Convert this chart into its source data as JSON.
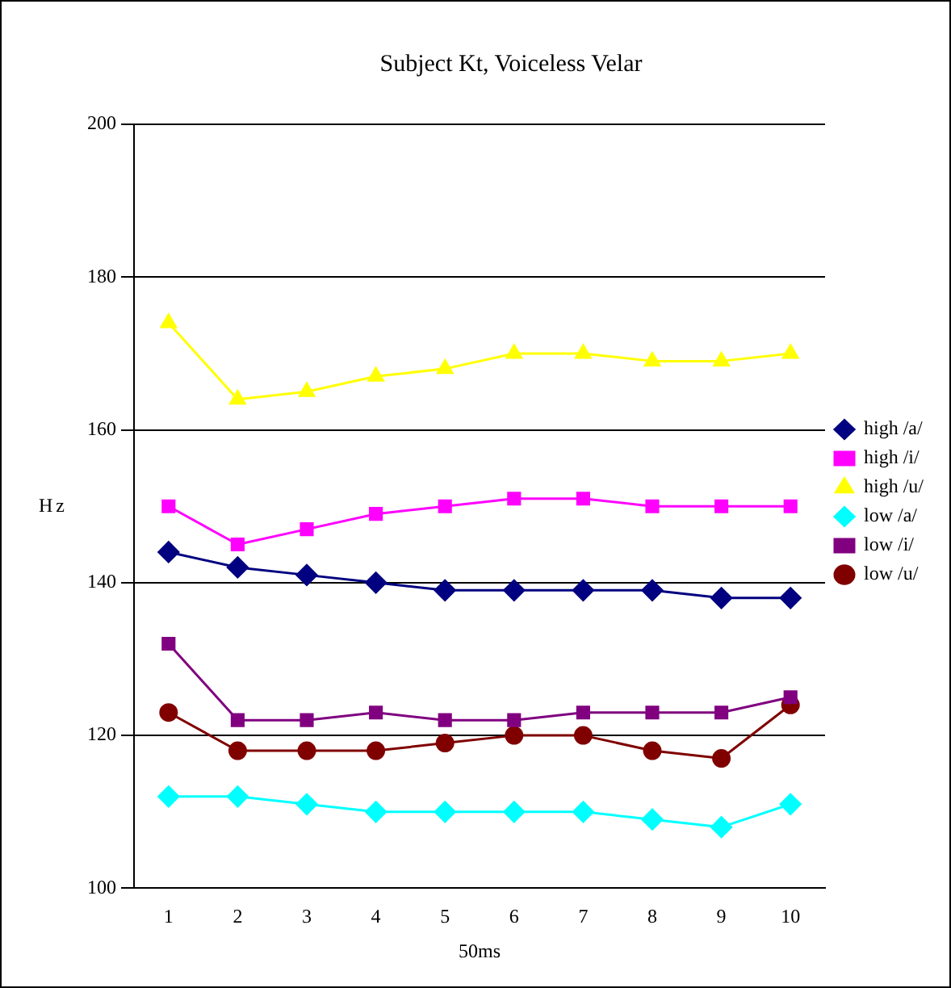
{
  "chart_data": {
    "type": "line",
    "title": "Subject Kt, Voiceless Velar",
    "xlabel": "50ms",
    "ylabel": "Hz",
    "categories": [
      "1",
      "2",
      "3",
      "4",
      "5",
      "6",
      "7",
      "8",
      "9",
      "10"
    ],
    "series": [
      {
        "name": "high /a/",
        "color": "#000080",
        "marker": "diamond",
        "values": [
          144,
          142,
          141,
          140,
          139,
          139,
          139,
          139,
          138,
          138
        ]
      },
      {
        "name": "high /i/",
        "color": "#ff00ff",
        "marker": "square",
        "values": [
          150,
          145,
          147,
          149,
          150,
          151,
          151,
          150,
          150,
          150
        ]
      },
      {
        "name": "high /u/",
        "color": "#ffff00",
        "marker": "triangle",
        "values": [
          174,
          164,
          165,
          167,
          168,
          170,
          170,
          169,
          169,
          170
        ]
      },
      {
        "name": "low /a/",
        "color": "#00ffff",
        "marker": "diamond",
        "values": [
          112,
          112,
          111,
          110,
          110,
          110,
          110,
          109,
          108,
          111
        ]
      },
      {
        "name": "low /i/",
        "color": "#800080",
        "marker": "square",
        "values": [
          132,
          122,
          122,
          123,
          122,
          122,
          123,
          123,
          123,
          125
        ]
      },
      {
        "name": "low /u/",
        "color": "#800000",
        "marker": "circle",
        "values": [
          123,
          118,
          118,
          118,
          119,
          120,
          120,
          118,
          117,
          124
        ]
      }
    ],
    "ylim": [
      100,
      200
    ],
    "yticks": [
      100,
      120,
      140,
      160,
      180,
      200
    ],
    "grid": "y",
    "legend": "right",
    "line_style": "solid"
  }
}
